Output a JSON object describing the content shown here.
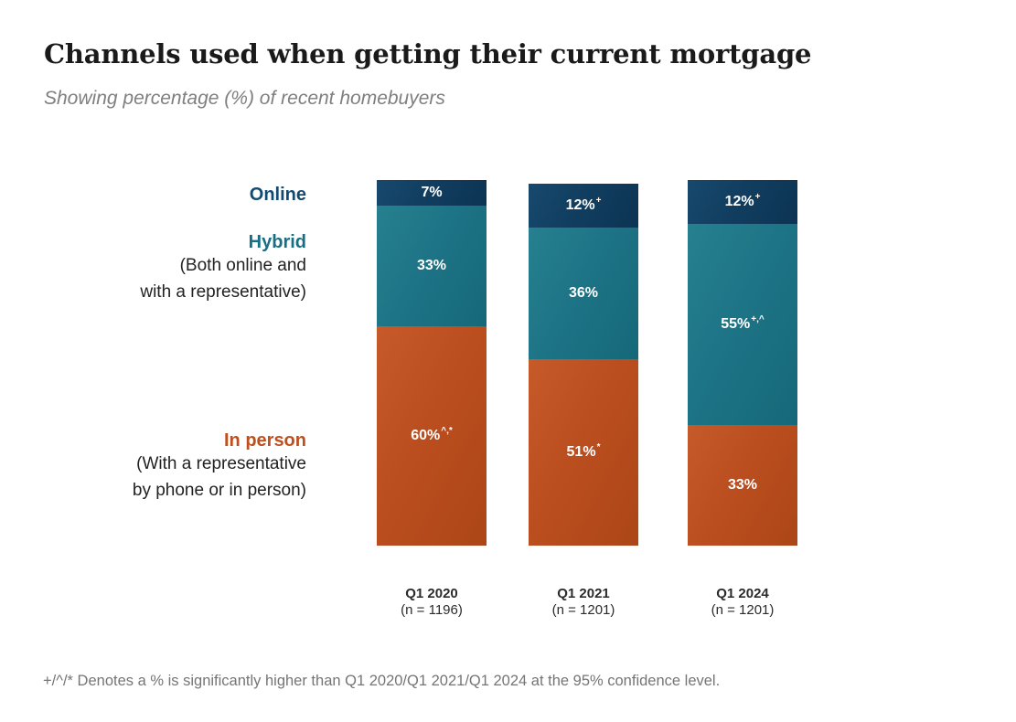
{
  "title": "Channels used when getting their current mortgage",
  "subtitle": "Showing percentage (%) of recent homebuyers",
  "series_labels": {
    "online": {
      "label": "Online",
      "color": "#134a71"
    },
    "hybrid": {
      "label": "Hybrid",
      "color": "#176f85",
      "sub_lines": [
        "(Both online and",
        "with a representative)"
      ]
    },
    "in_person": {
      "label": "In person",
      "color": "#c04f1e",
      "sub_lines": [
        "(With a representative",
        "by phone or in person)"
      ]
    }
  },
  "chart_data": {
    "type": "bar",
    "stacked": true,
    "orientation": "vertical",
    "unit": "%",
    "ylim": [
      0,
      100
    ],
    "legend_position": "left",
    "categories": [
      "Q1 2020",
      "Q1 2021",
      "Q1 2024"
    ],
    "sample_labels": [
      "(n = 1196)",
      "(n = 1201)",
      "(n = 1201)"
    ],
    "series": [
      {
        "key": "online",
        "name": "Online",
        "color": "#113e60",
        "color_light": "#17496e",
        "color_dark": "#0c3453",
        "values": [
          7,
          12,
          12
        ],
        "value_labels": [
          {
            "text": "7%",
            "sup": ""
          },
          {
            "text": "12%",
            "sup": "+"
          },
          {
            "text": "12%",
            "sup": "+"
          }
        ]
      },
      {
        "key": "hybrid",
        "name": "Hybrid (Both online and with a representative)",
        "color": "#1d7486",
        "color_light": "#26808f",
        "color_dark": "#156878",
        "values": [
          33,
          36,
          55
        ],
        "value_labels": [
          {
            "text": "33%",
            "sup": ""
          },
          {
            "text": "36%",
            "sup": ""
          },
          {
            "text": "55%",
            "sup": "+,^"
          }
        ]
      },
      {
        "key": "in_person",
        "name": "In person (With a representative by phone or in person)",
        "color": "#bb4e1f",
        "color_light": "#c65a29",
        "color_dark": "#ac4617",
        "values": [
          60,
          51,
          33
        ],
        "value_labels": [
          {
            "text": "60%",
            "sup": "^,*"
          },
          {
            "text": "51%",
            "sup": "*"
          },
          {
            "text": "33%",
            "sup": ""
          }
        ]
      }
    ]
  },
  "footnote": "+/^/* Denotes a % is significantly higher than Q1 2020/Q1 2021/Q1 2024 at the 95% confidence level."
}
